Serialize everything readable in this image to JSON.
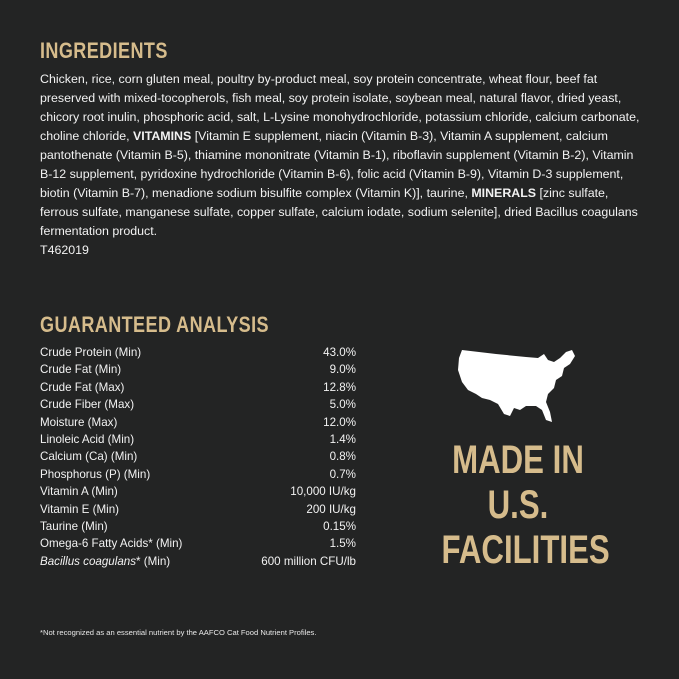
{
  "ingredients": {
    "title": "INGREDIENTS",
    "text_1": "Chicken, rice, corn gluten meal, poultry by-product meal, soy protein concentrate, wheat flour, beef fat preserved with mixed-tocopherols, fish meal, soy protein isolate, soybean meal, natural flavor, dried yeast, chicory root inulin, phosphoric acid, salt, L-Lysine monohydrochloride, potassium chloride, calcium carbonate, choline chloride, ",
    "bold_1": "VITAMINS",
    "text_2": " [Vitamin E supplement, niacin (Vitamin B-3), Vitamin A supplement, calcium pantothenate (Vitamin B-5), thiamine mononitrate (Vitamin B-1), riboflavin supplement (Vitamin B-2), Vitamin B-12 supplement, pyridoxine hydrochloride (Vitamin B-6), folic acid (Vitamin B-9), Vitamin D-3 supplement, biotin (Vitamin B-7), menadione sodium bisulfite complex (Vitamin K)], taurine, ",
    "bold_2": "MINERALS",
    "text_3": " [zinc sulfate, ferrous sulfate, manganese sulfate, copper sulfate, calcium iodate, sodium selenite], dried Bacillus coagulans fermentation product.",
    "code": "T462019"
  },
  "analysis": {
    "title": "GUARANTEED ANALYSIS",
    "rows": [
      {
        "label": "Crude Protein (Min)",
        "value": "43.0%"
      },
      {
        "label": "Crude Fat (Min)",
        "value": "9.0%"
      },
      {
        "label": "Crude Fat (Max)",
        "value": "12.8%"
      },
      {
        "label": "Crude Fiber (Max)",
        "value": "5.0%"
      },
      {
        "label": "Moisture (Max)",
        "value": "12.0%"
      },
      {
        "label": "Linoleic Acid (Min)",
        "value": "1.4%"
      },
      {
        "label": "Calcium (Ca) (Min)",
        "value": "0.8%"
      },
      {
        "label": "Phosphorus (P) (Min)",
        "value": "0.7%"
      },
      {
        "label": "Vitamin A (Min)",
        "value": "10,000 IU/kg"
      },
      {
        "label": "Vitamin E (Min)",
        "value": "200 IU/kg"
      },
      {
        "label": "Taurine (Min)",
        "value": "0.15%"
      },
      {
        "label": "Omega-6 Fatty Acids* (Min)",
        "value": "1.5%"
      }
    ],
    "last_row": {
      "label_italic": "Bacillus coagulans",
      "label_rest": "* (Min)",
      "value": "600 million CFU/lb"
    }
  },
  "footnote": "*Not recognized as an essential nutrient by the AAFCO Cat Food Nutrient Profiles.",
  "badge": {
    "icon": "usa-map-icon",
    "lines": [
      "MADE IN",
      "U.S.",
      "FACILITIES"
    ]
  },
  "colors": {
    "background": "#232424",
    "accent": "#d6bc8c",
    "text": "#f2f2f2"
  }
}
